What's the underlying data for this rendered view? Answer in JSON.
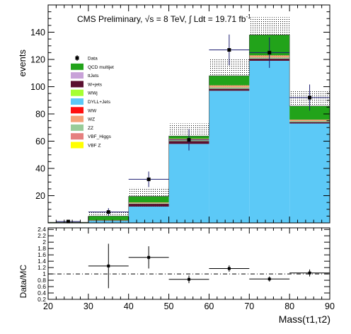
{
  "header": {
    "text": "CMS Preliminary, √s = 8 TeV, ∫ Ldt = 19.71 fb",
    "superscript": "-1"
  },
  "chart_data": [
    {
      "type": "bar",
      "stacked": true,
      "ylabel": "events",
      "ylim": [
        0,
        160
      ],
      "yticks": [
        20,
        40,
        60,
        80,
        100,
        120,
        140
      ],
      "xlim": [
        20,
        90
      ],
      "bin_edges": [
        20,
        30,
        40,
        50,
        60,
        70,
        80,
        90
      ],
      "series": [
        {
          "name": "DYLL+Jets",
          "color": "#5cc9f7",
          "values": [
            0,
            1.5,
            12,
            58,
            97,
            119,
            73
          ]
        },
        {
          "name": "W+jets",
          "color": "#5a1030",
          "values": [
            0,
            0.3,
            2,
            2,
            1.5,
            1.5,
            1
          ]
        },
        {
          "name": "ZZ",
          "color": "#99cc99",
          "values": [
            0,
            0.1,
            0.5,
            0.8,
            1,
            1,
            0.8
          ]
        },
        {
          "name": "WZ",
          "color": "#f4a078",
          "values": [
            0,
            0.1,
            0.5,
            1,
            1.5,
            1.5,
            1
          ]
        },
        {
          "name": "QCD multijet",
          "color": "#22a31a",
          "values": [
            0.5,
            3,
            4.5,
            2,
            7,
            15,
            10
          ]
        }
      ],
      "uncertainty_band_top": [
        1,
        8,
        26,
        73,
        121,
        151,
        97
      ],
      "data_points": {
        "name": "Data",
        "x": [
          25,
          35,
          45,
          55,
          65,
          75,
          85
        ],
        "y": [
          1,
          8,
          32,
          61,
          127,
          125,
          92
        ],
        "yerr": [
          1,
          2.8,
          5.7,
          7.8,
          11.3,
          11.2,
          9.6
        ],
        "xerr": [
          3,
          5,
          5,
          5,
          5,
          5,
          5
        ]
      },
      "legend": {
        "placement": "top-left",
        "entries": [
          {
            "label": "Data",
            "style": "marker",
            "color": "#000000"
          },
          {
            "label": "QCD multijet",
            "style": "fill",
            "color": "#22a31a"
          },
          {
            "label": "ttJets",
            "style": "fill",
            "color": "#c8a2d8"
          },
          {
            "label": "W+jets",
            "style": "fill",
            "color": "#5a1030"
          },
          {
            "label": "WWj",
            "style": "fill",
            "color": "#a6ff33"
          },
          {
            "label": "DYLL+Jets",
            "style": "fill",
            "color": "#5cc9f7"
          },
          {
            "label": "WW",
            "style": "fill",
            "color": "#ff1010"
          },
          {
            "label": "WZ",
            "style": "fill",
            "color": "#f4a078"
          },
          {
            "label": "ZZ",
            "style": "fill",
            "color": "#99cc99"
          },
          {
            "label": "VBF_Higgs",
            "style": "fill",
            "color": "#e5807f"
          },
          {
            "label": "VBF Z",
            "style": "fill",
            "color": "#ffff00"
          }
        ]
      }
    },
    {
      "type": "scatter",
      "ylabel": "Data/MC",
      "xlabel": "Mass(τ1,τ2)",
      "xlim": [
        20,
        90
      ],
      "ylim": [
        0.2,
        2.45
      ],
      "xticks": [
        20,
        30,
        40,
        50,
        60,
        70,
        80,
        90
      ],
      "yticks": [
        0.2,
        0.4,
        0.6,
        0.8,
        1,
        1.2,
        1.4,
        1.6,
        1.8,
        2,
        2.2,
        2.4
      ],
      "reference_line": 1,
      "points": {
        "x": [
          35,
          45,
          55,
          65,
          75,
          85
        ],
        "y": [
          1.25,
          1.52,
          0.83,
          1.17,
          0.84,
          1.03
        ],
        "yerr": [
          0.7,
          0.35,
          0.12,
          0.1,
          0.08,
          0.11
        ],
        "xerr": [
          5,
          5,
          5,
          5,
          5,
          5
        ]
      }
    }
  ]
}
